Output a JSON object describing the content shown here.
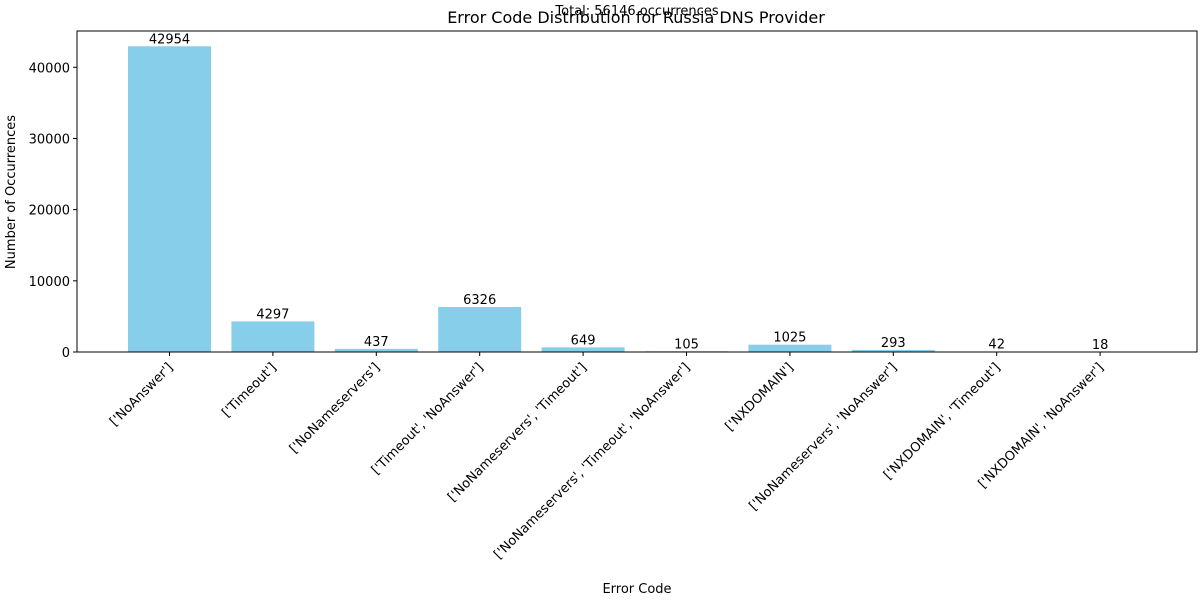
{
  "chart_data": {
    "type": "bar",
    "title": "Error Code Distribution for Russia DNS Provider",
    "subtitle": "Total: 56146 occurrences",
    "xlabel": "Error Code",
    "ylabel": "Number of Occurrences",
    "categories": [
      "['NoAnswer']",
      "['Timeout']",
      "['NoNameservers']",
      "['Timeout', 'NoAnswer']",
      "['NoNameservers', 'Timeout']",
      "['NoNameservers', 'Timeout', 'NoAnswer']",
      "['NXDOMAIN']",
      "['NoNameservers', 'NoAnswer']",
      "['NXDOMAIN', 'Timeout']",
      "['NXDOMAIN', 'NoAnswer']"
    ],
    "values": [
      42954,
      4297,
      437,
      6326,
      649,
      105,
      1025,
      293,
      42,
      18
    ],
    "yticks": [
      0,
      10000,
      20000,
      30000,
      40000
    ],
    "ylim": [
      0,
      45100
    ],
    "bar_color": "#87ceeb",
    "grid": false,
    "data_labels": true
  }
}
